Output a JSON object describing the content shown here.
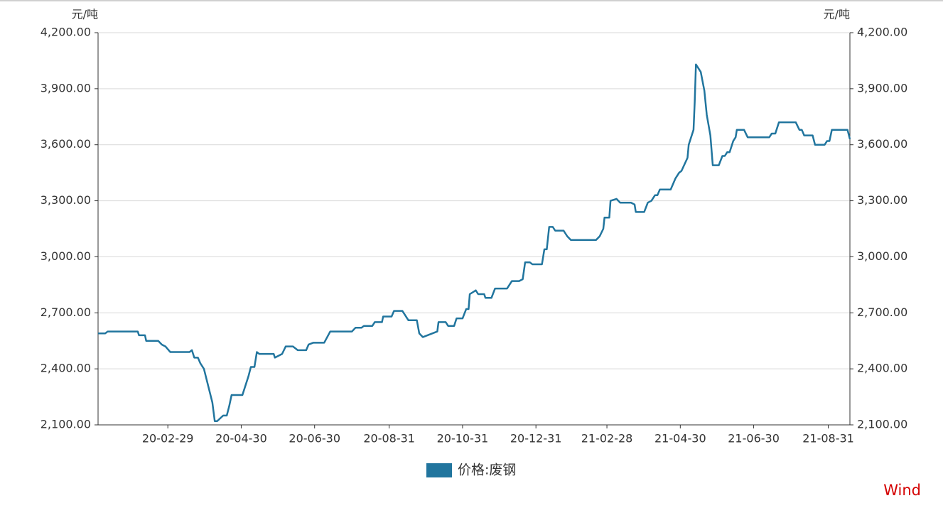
{
  "chart_data": {
    "type": "line",
    "y_label": "元/吨",
    "y2_label": "元/吨",
    "source": "Wind",
    "x": [
      "20-01-02",
      "20-01-08",
      "20-01-10",
      "20-02-04",
      "20-02-05",
      "20-02-10",
      "20-02-11",
      "20-02-21",
      "20-02-24",
      "20-02-27",
      "20-03-02",
      "20-03-18",
      "20-03-20",
      "20-03-22",
      "20-03-25",
      "20-03-27",
      "20-03-30",
      "20-04-06",
      "20-04-08",
      "20-04-10",
      "20-04-15",
      "20-04-18",
      "20-04-20",
      "20-04-22",
      "20-05-01",
      "20-05-06",
      "20-05-08",
      "20-05-11",
      "20-05-13",
      "20-05-15",
      "20-05-27",
      "20-05-28",
      "20-06-03",
      "20-06-06",
      "20-06-12",
      "20-06-16",
      "20-06-23",
      "20-06-25",
      "20-06-29",
      "20-07-08",
      "20-07-13",
      "20-07-31",
      "20-08-03",
      "20-08-08",
      "20-08-10",
      "20-08-17",
      "20-08-19",
      "20-08-25",
      "20-08-26",
      "20-09-02",
      "20-09-04",
      "20-09-11",
      "20-09-16",
      "20-09-23",
      "20-09-25",
      "20-09-28",
      "20-10-10",
      "20-10-11",
      "20-10-17",
      "20-10-19",
      "20-10-24",
      "20-10-26",
      "20-10-31",
      "20-11-03",
      "20-11-05",
      "20-11-06",
      "20-11-11",
      "20-11-13",
      "20-11-18",
      "20-11-19",
      "20-11-24",
      "20-11-27",
      "20-12-07",
      "20-12-09",
      "20-12-11",
      "20-12-17",
      "20-12-20",
      "20-12-22",
      "20-12-26",
      "20-12-28",
      "21-01-05",
      "21-01-07",
      "21-01-09",
      "21-01-11",
      "21-01-14",
      "21-01-16",
      "21-01-23",
      "21-01-26",
      "21-01-29",
      "21-02-19",
      "21-02-22",
      "21-02-25",
      "21-02-26",
      "21-03-02",
      "21-03-03",
      "21-03-08",
      "21-03-11",
      "21-03-20",
      "21-03-23",
      "21-03-24",
      "21-03-31",
      "21-04-03",
      "21-04-06",
      "21-04-09",
      "21-04-11",
      "21-04-13",
      "21-04-22",
      "21-04-26",
      "21-04-29",
      "21-05-01",
      "21-05-06",
      "21-05-07",
      "21-05-11",
      "21-05-12",
      "21-05-13",
      "21-05-17",
      "21-05-20",
      "21-05-22",
      "21-05-25",
      "21-05-27",
      "21-06-01",
      "21-06-04",
      "21-06-06",
      "21-06-08",
      "21-06-10",
      "21-06-13",
      "21-06-15",
      "21-06-16",
      "21-06-22",
      "21-06-25",
      "21-07-13",
      "21-07-15",
      "21-07-18",
      "21-07-21",
      "21-08-04",
      "21-08-07",
      "21-08-09",
      "21-08-11",
      "21-08-18",
      "21-08-20",
      "21-08-28",
      "21-08-30",
      "21-09-01",
      "21-09-03",
      "21-09-16",
      "21-09-18"
    ],
    "series": [
      {
        "name": "价格:废钢",
        "color": "#21759e",
        "values": [
          2590,
          2590,
          2600,
          2600,
          2580,
          2580,
          2550,
          2550,
          2530,
          2520,
          2490,
          2490,
          2500,
          2460,
          2460,
          2430,
          2400,
          2220,
          2120,
          2120,
          2150,
          2150,
          2200,
          2260,
          2260,
          2360,
          2410,
          2410,
          2490,
          2480,
          2480,
          2460,
          2480,
          2520,
          2520,
          2500,
          2500,
          2530,
          2540,
          2540,
          2600,
          2600,
          2620,
          2620,
          2630,
          2630,
          2650,
          2650,
          2680,
          2680,
          2710,
          2710,
          2660,
          2660,
          2590,
          2570,
          2600,
          2650,
          2650,
          2630,
          2630,
          2670,
          2670,
          2720,
          2720,
          2800,
          2820,
          2800,
          2800,
          2780,
          2780,
          2830,
          2830,
          2850,
          2870,
          2870,
          2880,
          2970,
          2970,
          2960,
          2960,
          3040,
          3040,
          3160,
          3160,
          3140,
          3140,
          3110,
          3090,
          3090,
          3110,
          3150,
          3210,
          3210,
          3300,
          3310,
          3290,
          3290,
          3280,
          3240,
          3240,
          3290,
          3300,
          3330,
          3330,
          3360,
          3360,
          3420,
          3450,
          3460,
          3530,
          3600,
          3680,
          3830,
          4030,
          3990,
          3890,
          3760,
          3650,
          3490,
          3490,
          3540,
          3540,
          3560,
          3560,
          3620,
          3640,
          3680,
          3680,
          3640,
          3640,
          3660,
          3660,
          3720,
          3720,
          3680,
          3680,
          3650,
          3650,
          3600,
          3600,
          3620,
          3620,
          3680,
          3680,
          3630
        ]
      }
    ],
    "xlim": [
      "20-01-02",
      "21-09-18"
    ],
    "xticks": [
      "20-02-29",
      "20-04-30",
      "20-06-30",
      "20-08-31",
      "20-10-31",
      "20-12-31",
      "21-02-28",
      "21-04-30",
      "21-06-30",
      "21-08-31"
    ],
    "ylim": [
      2100,
      4200
    ],
    "yticks": [
      {
        "value": 2100,
        "label": "2,100.00"
      },
      {
        "value": 2400,
        "label": "2,400.00"
      },
      {
        "value": 2700,
        "label": "2,700.00"
      },
      {
        "value": 3000,
        "label": "3,000.00"
      },
      {
        "value": 3300,
        "label": "3,300.00"
      },
      {
        "value": 3600,
        "label": "3,600.00"
      },
      {
        "value": 3900,
        "label": "3,900.00"
      },
      {
        "value": 4200,
        "label": "4,200.00"
      }
    ],
    "y2lim": [
      2100,
      4200
    ],
    "y2ticks": [
      {
        "value": 2100,
        "label": "2,100.00"
      },
      {
        "value": 2400,
        "label": "2,400.00"
      },
      {
        "value": 2700,
        "label": "2,700.00"
      },
      {
        "value": 3000,
        "label": "3,000.00"
      },
      {
        "value": 3300,
        "label": "3,300.00"
      },
      {
        "value": 3600,
        "label": "3,600.00"
      },
      {
        "value": 3900,
        "label": "3,900.00"
      },
      {
        "value": 4200,
        "label": "4,200.00"
      }
    ],
    "grid": true,
    "legend": "bottom"
  }
}
